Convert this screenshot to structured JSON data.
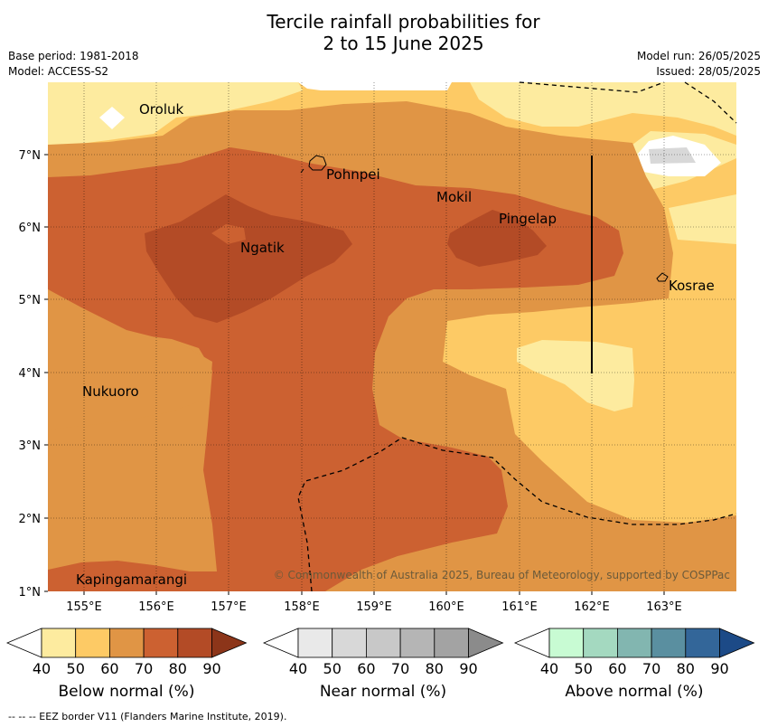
{
  "title_line1": "Tercile rainfall probabilities for",
  "title_line2": "2 to 15 June 2025",
  "meta": {
    "base_period": "Base period: 1981-2018",
    "model": "Model: ACCESS-S2",
    "model_run": "Model run: 26/05/2025",
    "issued": "Issued: 28/05/2025"
  },
  "map": {
    "lon_ticks": [
      "155°E",
      "156°E",
      "157°E",
      "158°E",
      "159°E",
      "160°E",
      "161°E",
      "162°E",
      "163°E"
    ],
    "lat_ticks": [
      "7°N",
      "6°N",
      "5°N",
      "4°N",
      "3°N",
      "2°N",
      "1°N"
    ],
    "places": [
      {
        "name": "Oroluk"
      },
      {
        "name": "Pohnpei"
      },
      {
        "name": "Mokil"
      },
      {
        "name": "Pingelap"
      },
      {
        "name": "Ngatik"
      },
      {
        "name": "Kosrae"
      },
      {
        "name": "Nukuoro"
      },
      {
        "name": "Kapingamarangi"
      }
    ],
    "credit": "© Commonwealth of Australia 2025, Bureau of Meteorology, supported by COSPPac"
  },
  "colorbars": [
    {
      "label": "Below normal (%)",
      "ticks": [
        "40",
        "50",
        "60",
        "70",
        "80",
        "90"
      ],
      "colors": [
        "#ffffff",
        "#fdeb9f",
        "#fdca65",
        "#e09545",
        "#cc6131",
        "#b34b26",
        "#8c3519"
      ]
    },
    {
      "label": "Near normal (%)",
      "ticks": [
        "40",
        "50",
        "60",
        "70",
        "80",
        "90"
      ],
      "colors": [
        "#ffffff",
        "#e9e9e9",
        "#d8d8d8",
        "#c8c8c8",
        "#b5b5b5",
        "#a3a3a3",
        "#8b8b8b"
      ]
    },
    {
      "label": "Above normal (%)",
      "ticks": [
        "40",
        "50",
        "60",
        "70",
        "80",
        "90"
      ],
      "colors": [
        "#ffffff",
        "#c8fbd3",
        "#a4d9c0",
        "#82b6b0",
        "#5a8fa0",
        "#336699",
        "#1c4a87"
      ]
    }
  ],
  "footnote": "-- -- -- EEZ border V11 (Flanders Marine Institute, 2019)."
}
